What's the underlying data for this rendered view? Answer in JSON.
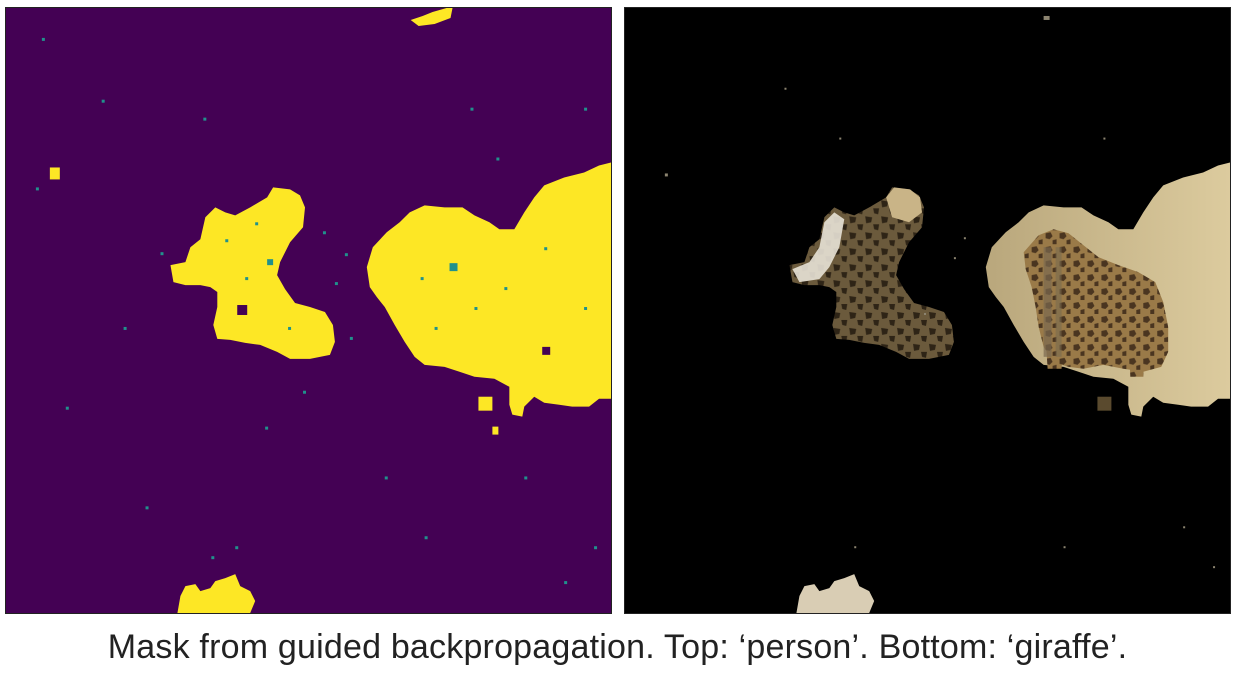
{
  "caption": "Mask from guided backpropagation. Top: ‘person’. Bottom: ‘giraffe’.",
  "colors": {
    "mask_background": "#440154",
    "mask_foreground": "#fde725",
    "mask_edge": "#21918c",
    "masked_background": "#000000",
    "masked_wall": "#d8c79a",
    "giraffe_body": "#8a6a3e",
    "giraffe_spots": "#4a3520"
  }
}
